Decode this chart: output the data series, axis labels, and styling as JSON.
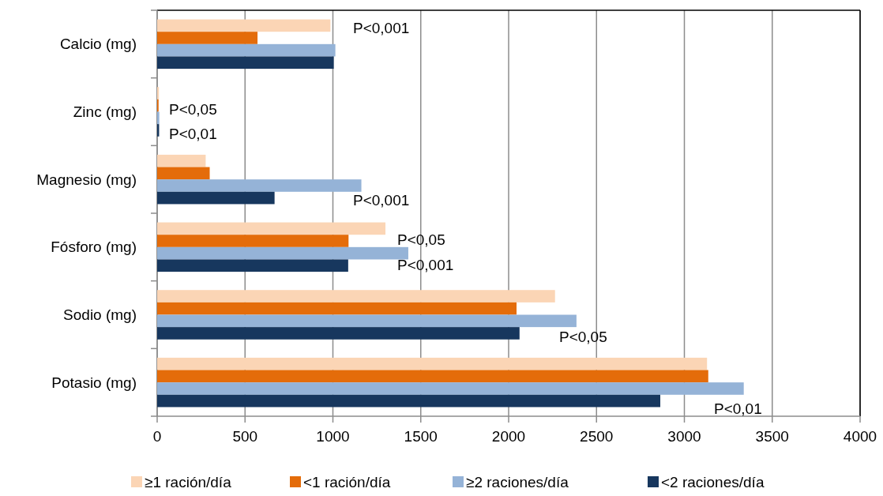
{
  "chart_data": {
    "type": "bar",
    "orientation": "horizontal",
    "categories": [
      "Calcio (mg)",
      "Zinc (mg)",
      "Magnesio (mg)",
      "Fósforo (mg)",
      "Sodio (mg)",
      "Potasio (mg)"
    ],
    "series": [
      {
        "name": "≥1 ración/día",
        "color": "#fbd5b5",
        "values": [
          986,
          10,
          276,
          1299,
          2264,
          3129
        ]
      },
      {
        "name": "<1 ración/día",
        "color": "#e46c0a",
        "values": [
          571,
          8,
          299,
          1089,
          2045,
          3136
        ]
      },
      {
        "name": "≥2 raciones/día",
        "color": "#95b3d7",
        "values": [
          1014,
          12,
          1162,
          1429,
          2386,
          3338
        ]
      },
      {
        "name": "<2 raciones/día",
        "color": "#17375e",
        "values": [
          1005,
          11,
          668,
          1087,
          2062,
          2863
        ]
      }
    ],
    "xlim": [
      0,
      4000
    ],
    "xticks": [
      0,
      500,
      1000,
      1500,
      2000,
      2500,
      3000,
      3500,
      4000
    ],
    "grid": "x",
    "legend": "bottom",
    "annotations": [
      "P<0,001",
      "P<0,05",
      "P<0,01",
      "P<0,001",
      "P<0,05",
      "P<0,001",
      "P<0,05",
      "P<0,01"
    ]
  }
}
